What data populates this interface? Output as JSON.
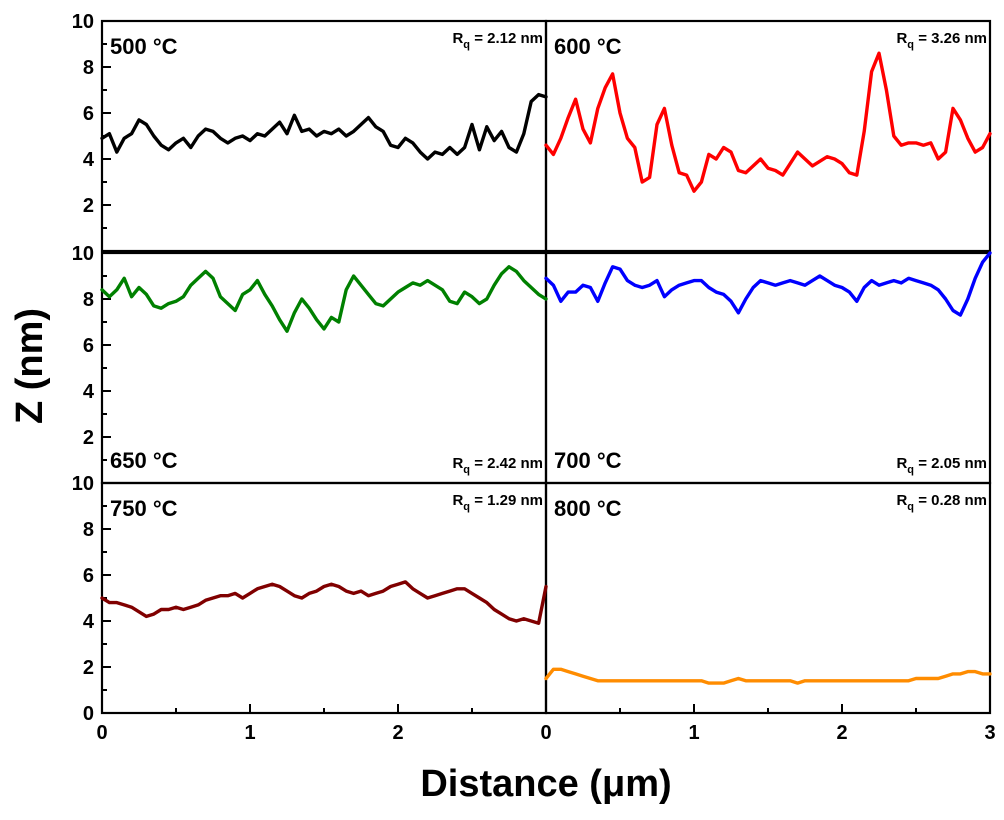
{
  "chart_data": {
    "type": "line",
    "xlabel": "Distance (μm)",
    "ylabel": "Z (nm)",
    "xlim": [
      0,
      3
    ],
    "ylim": [
      0,
      10
    ],
    "x_ticks": [
      "0",
      "1",
      "2",
      "3"
    ],
    "y_ticks": [
      "0",
      "2",
      "4",
      "6",
      "8",
      "10"
    ],
    "x": [
      0.0,
      0.05,
      0.1,
      0.15,
      0.2,
      0.25,
      0.3,
      0.35,
      0.4,
      0.45,
      0.5,
      0.55,
      0.6,
      0.65,
      0.7,
      0.75,
      0.8,
      0.85,
      0.9,
      0.95,
      1.0,
      1.05,
      1.1,
      1.15,
      1.2,
      1.25,
      1.3,
      1.35,
      1.4,
      1.45,
      1.5,
      1.55,
      1.6,
      1.65,
      1.7,
      1.75,
      1.8,
      1.85,
      1.9,
      1.95,
      2.0,
      2.05,
      2.1,
      2.15,
      2.2,
      2.25,
      2.3,
      2.35,
      2.4,
      2.45,
      2.5,
      2.55,
      2.6,
      2.65,
      2.7,
      2.75,
      2.8,
      2.85,
      2.9,
      2.95,
      3.0
    ],
    "series": [
      {
        "name": "500 °C",
        "rq": "R",
        "rq_sub": "q",
        "rq_value": "= 2.12 nm",
        "color": "#000000",
        "row": 0,
        "col": 0,
        "label_pos": "top",
        "values": [
          4.9,
          5.1,
          4.3,
          4.9,
          5.1,
          5.7,
          5.5,
          5.0,
          4.6,
          4.4,
          4.7,
          4.9,
          4.5,
          5.0,
          5.3,
          5.2,
          4.9,
          4.7,
          4.9,
          5.0,
          4.8,
          5.1,
          5.0,
          5.3,
          5.6,
          5.1,
          5.9,
          5.2,
          5.3,
          5.0,
          5.2,
          5.1,
          5.3,
          5.0,
          5.2,
          5.5,
          5.8,
          5.4,
          5.2,
          4.6,
          4.5,
          4.9,
          4.7,
          4.3,
          4.0,
          4.3,
          4.2,
          4.5,
          4.2,
          4.5,
          5.5,
          4.4,
          5.4,
          4.8,
          5.2,
          4.5,
          4.3,
          5.1,
          6.5,
          6.8,
          6.7
        ]
      },
      {
        "name": "600 °C",
        "rq": "R",
        "rq_sub": "q",
        "rq_value": "= 3.26 nm",
        "color": "#ff0000",
        "row": 0,
        "col": 1,
        "label_pos": "top",
        "values": [
          4.6,
          4.2,
          4.9,
          5.8,
          6.6,
          5.3,
          4.7,
          6.2,
          7.1,
          7.7,
          6.0,
          4.9,
          4.5,
          3.0,
          3.2,
          5.5,
          6.2,
          4.6,
          3.4,
          3.3,
          2.6,
          3.0,
          4.2,
          4.0,
          4.5,
          4.3,
          3.5,
          3.4,
          3.7,
          4.0,
          3.6,
          3.5,
          3.3,
          3.8,
          4.3,
          4.0,
          3.7,
          3.9,
          4.1,
          4.0,
          3.8,
          3.4,
          3.3,
          5.2,
          7.8,
          8.6,
          7.0,
          5.0,
          4.6,
          4.7,
          4.7,
          4.6,
          4.7,
          4.0,
          4.3,
          6.2,
          5.7,
          4.9,
          4.3,
          4.5,
          5.1
        ]
      },
      {
        "name": "650 °C",
        "rq": "R",
        "rq_sub": "q",
        "rq_value": "= 2.42 nm",
        "color": "#008000",
        "row": 1,
        "col": 0,
        "label_pos": "bottom",
        "values": [
          8.4,
          8.1,
          8.4,
          8.9,
          8.1,
          8.5,
          8.2,
          7.7,
          7.6,
          7.8,
          7.9,
          8.1,
          8.6,
          8.9,
          9.2,
          8.9,
          8.1,
          7.8,
          7.5,
          8.2,
          8.4,
          8.8,
          8.2,
          7.7,
          7.1,
          6.6,
          7.4,
          8.0,
          7.6,
          7.1,
          6.7,
          7.2,
          7.0,
          8.4,
          9.0,
          8.6,
          8.2,
          7.8,
          7.7,
          8.0,
          8.3,
          8.5,
          8.7,
          8.6,
          8.8,
          8.6,
          8.4,
          7.9,
          7.8,
          8.3,
          8.1,
          7.8,
          8.0,
          8.6,
          9.1,
          9.4,
          9.2,
          8.8,
          8.5,
          8.2,
          8.0
        ]
      },
      {
        "name": "700 °C",
        "rq": "R",
        "rq_sub": "q",
        "rq_value": "= 2.05 nm",
        "color": "#0000ff",
        "row": 1,
        "col": 1,
        "label_pos": "bottom",
        "values": [
          8.9,
          8.6,
          7.9,
          8.3,
          8.3,
          8.6,
          8.5,
          7.9,
          8.7,
          9.4,
          9.3,
          8.8,
          8.6,
          8.5,
          8.6,
          8.8,
          8.1,
          8.4,
          8.6,
          8.7,
          8.8,
          8.8,
          8.5,
          8.3,
          8.2,
          7.9,
          7.4,
          8.0,
          8.5,
          8.8,
          8.7,
          8.6,
          8.7,
          8.8,
          8.7,
          8.6,
          8.8,
          9.0,
          8.8,
          8.6,
          8.5,
          8.3,
          7.9,
          8.5,
          8.8,
          8.6,
          8.7,
          8.8,
          8.7,
          8.9,
          8.8,
          8.7,
          8.6,
          8.4,
          8.0,
          7.5,
          7.3,
          8.0,
          8.9,
          9.6,
          10.0
        ]
      },
      {
        "name": "750 °C",
        "rq": "R",
        "rq_sub": "q",
        "rq_value": "= 1.29 nm",
        "color": "#800000",
        "row": 2,
        "col": 0,
        "label_pos": "top",
        "values": [
          5.0,
          4.8,
          4.8,
          4.7,
          4.6,
          4.4,
          4.2,
          4.3,
          4.5,
          4.5,
          4.6,
          4.5,
          4.6,
          4.7,
          4.9,
          5.0,
          5.1,
          5.1,
          5.2,
          5.0,
          5.2,
          5.4,
          5.5,
          5.6,
          5.5,
          5.3,
          5.1,
          5.0,
          5.2,
          5.3,
          5.5,
          5.6,
          5.5,
          5.3,
          5.2,
          5.3,
          5.1,
          5.2,
          5.3,
          5.5,
          5.6,
          5.7,
          5.4,
          5.2,
          5.0,
          5.1,
          5.2,
          5.3,
          5.4,
          5.4,
          5.2,
          5.0,
          4.8,
          4.5,
          4.3,
          4.1,
          4.0,
          4.1,
          4.0,
          3.9,
          5.5
        ]
      },
      {
        "name": "800 °C",
        "rq": "R",
        "rq_sub": "q",
        "rq_value": "= 0.28 nm",
        "color": "#ff8c00",
        "row": 2,
        "col": 1,
        "label_pos": "top",
        "values": [
          1.5,
          1.9,
          1.9,
          1.8,
          1.7,
          1.6,
          1.5,
          1.4,
          1.4,
          1.4,
          1.4,
          1.4,
          1.4,
          1.4,
          1.4,
          1.4,
          1.4,
          1.4,
          1.4,
          1.4,
          1.4,
          1.4,
          1.3,
          1.3,
          1.3,
          1.4,
          1.5,
          1.4,
          1.4,
          1.4,
          1.4,
          1.4,
          1.4,
          1.4,
          1.3,
          1.4,
          1.4,
          1.4,
          1.4,
          1.4,
          1.4,
          1.4,
          1.4,
          1.4,
          1.4,
          1.4,
          1.4,
          1.4,
          1.4,
          1.4,
          1.5,
          1.5,
          1.5,
          1.5,
          1.6,
          1.7,
          1.7,
          1.8,
          1.8,
          1.7,
          1.7
        ]
      }
    ]
  }
}
